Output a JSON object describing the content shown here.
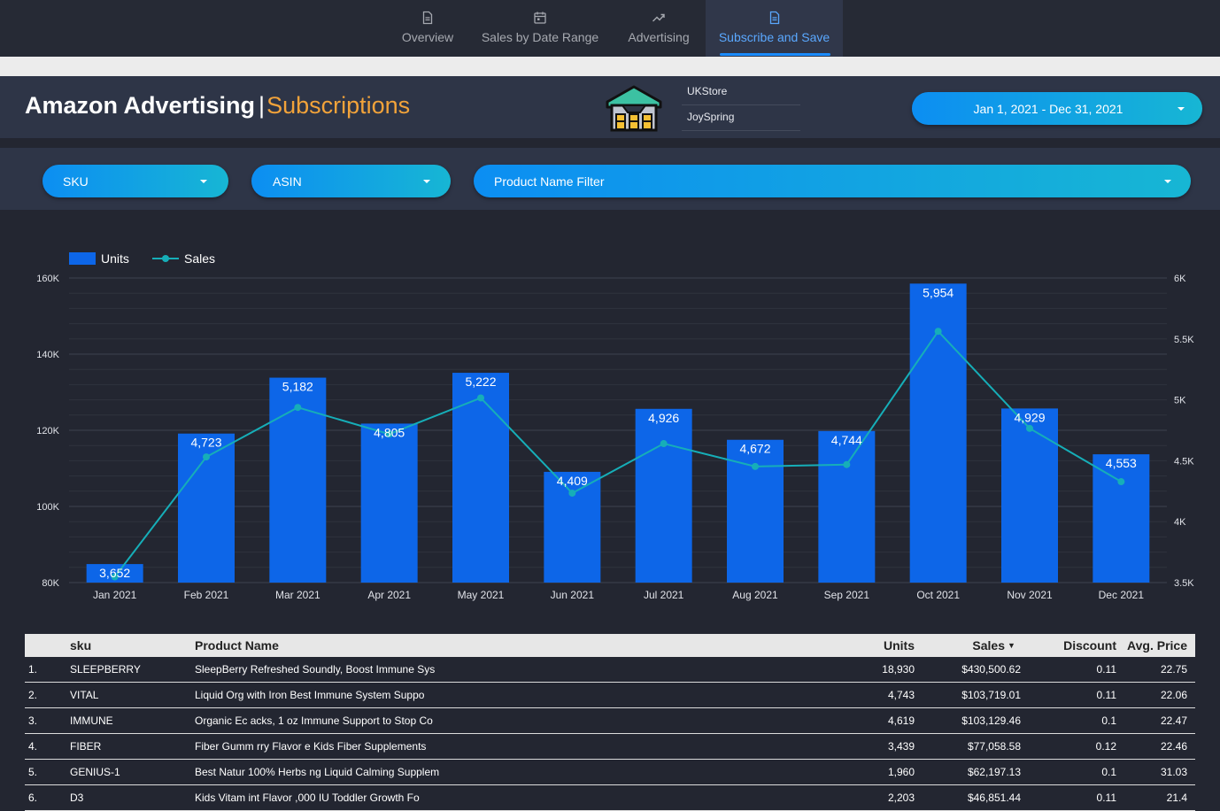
{
  "nav": {
    "tabs": [
      {
        "label": "Overview",
        "icon": "document-icon"
      },
      {
        "label": "Sales by Date Range",
        "icon": "calendar-icon"
      },
      {
        "label": "Advertising",
        "icon": "trending-up-icon"
      },
      {
        "label": "Subscribe and Save",
        "icon": "document-icon",
        "active": true
      }
    ]
  },
  "header": {
    "title": "Amazon Advertising",
    "separator": "|",
    "subtitle": "Subscriptions",
    "logo_icon": "warehouse-icon",
    "store_labels": [
      "UKStore",
      "JoySpring"
    ],
    "date_range": "Jan 1, 2021 - Dec 31, 2021"
  },
  "filters": {
    "sku": "SKU",
    "asin": "ASIN",
    "product_name": "Product Name Filter"
  },
  "colors": {
    "bar": "#0d66e8",
    "line": "#16aeb8",
    "accent": "#f2a33a",
    "active_tab": "#5aa8ff"
  },
  "chart_data": {
    "type": "bar",
    "categories": [
      "Jan 2021",
      "Feb 2021",
      "Mar 2021",
      "Apr 2021",
      "May 2021",
      "Jun 2021",
      "Jul 2021",
      "Aug 2021",
      "Sep 2021",
      "Oct 2021",
      "Nov 2021",
      "Dec 2021"
    ],
    "series": [
      {
        "name": "Units",
        "type": "bar",
        "axis": "right",
        "values": [
          3652,
          4723,
          5182,
          4805,
          5222,
          4409,
          4926,
          4672,
          4744,
          5954,
          4929,
          4553
        ],
        "value_labels": [
          "3,652",
          "4,723",
          "5,182",
          "4,805",
          "5,222",
          "4,409",
          "4,926",
          "4,672",
          "4,744",
          "5,954",
          "4,929",
          "4,553"
        ]
      },
      {
        "name": "Sales",
        "type": "line",
        "axis": "left",
        "values": [
          81500,
          113000,
          126000,
          119000,
          128500,
          103500,
          116500,
          110500,
          111000,
          146000,
          120500,
          106500
        ]
      }
    ],
    "left_axis": {
      "ticks": [
        "80K",
        "100K",
        "120K",
        "140K",
        "160K"
      ],
      "range": [
        80000,
        160000
      ]
    },
    "right_axis": {
      "ticks": [
        "3.5K",
        "4K",
        "4.5K",
        "5K",
        "5.5K",
        "6K"
      ],
      "range": [
        3500,
        6000
      ]
    },
    "legend": "top-left",
    "grid": true
  },
  "table": {
    "columns": [
      "sku",
      "Product Name",
      "Units",
      "Sales",
      "Discount",
      "Avg. Price"
    ],
    "sort_indicator": "▼",
    "rows": [
      {
        "index": "1.",
        "sku": "SLEEPBERRY",
        "name": "SleepBerry Refreshed Soundly, Boost Immune Sys",
        "units": "18,930",
        "sales": "$430,500.62",
        "discount": "0.11",
        "price": "22.75"
      },
      {
        "index": "2.",
        "sku": "VITAL",
        "name": "Liquid Org with Iron Best Immune System Suppo",
        "units": "4,743",
        "sales": "$103,719.01",
        "discount": "0.11",
        "price": "22.06"
      },
      {
        "index": "3.",
        "sku": "IMMUNE",
        "name": "Organic Ec acks, 1 oz Immune Support to Stop Co",
        "units": "4,619",
        "sales": "$103,129.46",
        "discount": "0.1",
        "price": "22.47"
      },
      {
        "index": "4.",
        "sku": "FIBER",
        "name": "Fiber Gumm rry Flavor e Kids Fiber Supplements",
        "units": "3,439",
        "sales": "$77,058.58",
        "discount": "0.12",
        "price": "22.46"
      },
      {
        "index": "5.",
        "sku": "GENIUS-1",
        "name": "Best Natur 100% Herbs ng Liquid Calming Supplem",
        "units": "1,960",
        "sales": "$62,197.13",
        "discount": "0.1",
        "price": "31.03"
      },
      {
        "index": "6.",
        "sku": "D3",
        "name": "Kids Vitam int Flavor ,000 IU Toddler Growth Fo",
        "units": "2,203",
        "sales": "$46,851.44",
        "discount": "0.11",
        "price": "21.4"
      }
    ]
  }
}
